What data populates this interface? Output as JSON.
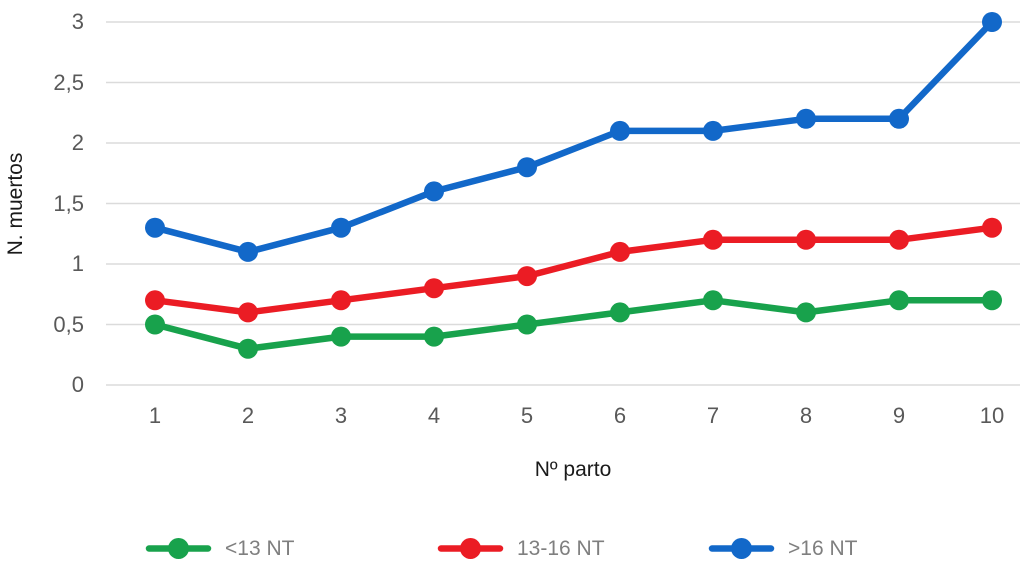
{
  "chart_data": {
    "type": "line",
    "title": "",
    "xlabel": "Nº parto",
    "ylabel": "N. muertos",
    "x": [
      1,
      2,
      3,
      4,
      5,
      6,
      7,
      8,
      9,
      10
    ],
    "x_tick_labels": [
      "1",
      "2",
      "3",
      "4",
      "5",
      "6",
      "7",
      "8",
      "9",
      "10"
    ],
    "y_ticks": [
      0,
      0.5,
      1,
      1.5,
      2,
      2.5,
      3
    ],
    "y_tick_labels": [
      "0",
      "0,5",
      "1",
      "1,5",
      "2",
      "2,5",
      "3"
    ],
    "ylim": [
      0,
      3
    ],
    "grid": "horizontal-only",
    "legend_position": "bottom",
    "series": [
      {
        "name": "<13 NT",
        "color": "#18A24C",
        "values": [
          0.5,
          0.3,
          0.4,
          0.4,
          0.5,
          0.6,
          0.7,
          0.6,
          0.7,
          0.7
        ]
      },
      {
        "name": "13-16 NT",
        "color": "#EB1C24",
        "values": [
          0.7,
          0.6,
          0.7,
          0.8,
          0.9,
          1.1,
          1.2,
          1.2,
          1.2,
          1.3
        ]
      },
      {
        "name": ">16 NT",
        "color": "#1268C9",
        "values": [
          1.3,
          1.1,
          1.3,
          1.6,
          1.8,
          2.1,
          2.1,
          2.2,
          2.2,
          3.0
        ]
      }
    ]
  },
  "colors": {
    "background": "#FFFFFF",
    "gridline": "#DBDBDB",
    "tick_label": "#595959",
    "axis_title": "#1A1A1A",
    "legend_label": "#7F7F7F"
  }
}
